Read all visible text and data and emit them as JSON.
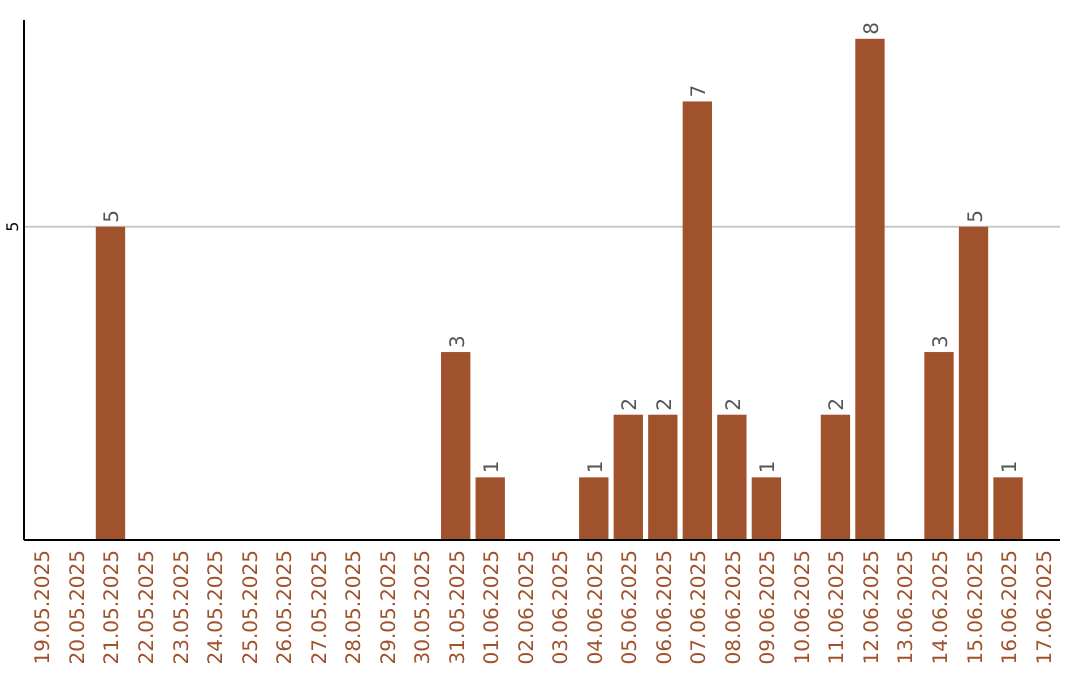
{
  "chart_data": {
    "type": "bar",
    "categories": [
      "19.05.2025",
      "20.05.2025",
      "21.05.2025",
      "22.05.2025",
      "23.05.2025",
      "24.05.2025",
      "25.05.2025",
      "26.05.2025",
      "27.05.2025",
      "28.05.2025",
      "29.05.2025",
      "30.05.2025",
      "31.05.2025",
      "01.06.2025",
      "02.06.2025",
      "03.06.2025",
      "04.06.2025",
      "05.06.2025",
      "06.06.2025",
      "07.06.2025",
      "08.06.2025",
      "09.06.2025",
      "10.06.2025",
      "11.06.2025",
      "12.06.2025",
      "13.06.2025",
      "14.06.2025",
      "15.06.2025",
      "16.06.2025",
      "17.06.2025"
    ],
    "values": [
      0,
      0,
      5,
      0,
      0,
      0,
      0,
      0,
      0,
      0,
      0,
      0,
      3,
      1,
      0,
      0,
      1,
      2,
      2,
      7,
      2,
      1,
      0,
      2,
      8,
      0,
      3,
      5,
      1,
      0
    ],
    "value_labels": [
      null,
      null,
      "5",
      null,
      null,
      null,
      null,
      null,
      null,
      null,
      null,
      null,
      "3",
      "1",
      null,
      null,
      "1",
      "2",
      "2",
      "7",
      "2",
      "1",
      null,
      "2",
      "8",
      null,
      "3",
      "5",
      "1",
      null
    ],
    "color": "#a0522d",
    "ylim": [
      0,
      8.3
    ],
    "yticks": [
      5
    ],
    "grid": "y"
  }
}
